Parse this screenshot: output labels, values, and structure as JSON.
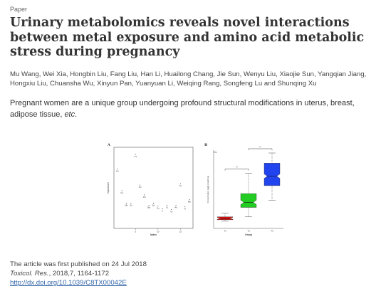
{
  "tag": "Paper",
  "title": "Urinary metabolomics reveals novel interactions between metal exposure and amino acid metabolic stress during pregnancy",
  "authors": "Mu Wang, Wei Xia, Hongbin Liu, Fang Liu, Han Li, Huailong Chang, Jie Sun, Wenyu Liu, Xiaojie Sun, Yangqian Jiang, Hongxiu Liu, Chuansha Wu, Xinyun Pan, Yuanyuan Li, Weiqing Rang, Songfeng Lu and Shunqing Xu",
  "abstract": {
    "text": "Pregnant women are a unique group undergoing profound structural modifications in uterus, breast, adipose tissue, ",
    "etc": "etc",
    "end": "."
  },
  "figure": {
    "panel_a": {
      "label": "A",
      "xlabel": "Index",
      "ylabel": "Importance",
      "xticks": [
        "5",
        "10",
        "15"
      ],
      "points": [
        {
          "label": "Fe",
          "x": 1,
          "y": 0.79
        },
        {
          "label": "Cu",
          "x": 2,
          "y": 0.48
        },
        {
          "label": "Mn",
          "x": 3,
          "y": 0.3
        },
        {
          "label": "Zn",
          "x": 4,
          "y": 0.3
        },
        {
          "label": "Cs",
          "x": 5,
          "y": 1.0
        },
        {
          "label": "Sn",
          "x": 6,
          "y": 0.56
        },
        {
          "label": "Pb",
          "x": 7,
          "y": 0.42
        },
        {
          "label": "Ba",
          "x": 8,
          "y": 0.27
        },
        {
          "label": "Se",
          "x": 9,
          "y": 0.3
        },
        {
          "label": "Co",
          "x": 10,
          "y": 0.26
        },
        {
          "label": "V",
          "x": 11,
          "y": 0.22
        },
        {
          "label": "Cr",
          "x": 12,
          "y": 0.27
        },
        {
          "label": "Ni",
          "x": 13,
          "y": 0.21
        },
        {
          "label": "As",
          "x": 14,
          "y": 0.27
        },
        {
          "label": "Sr",
          "x": 15,
          "y": 0.58
        },
        {
          "label": "Tl",
          "x": 16,
          "y": 0.25
        },
        {
          "label": "Mo",
          "x": 17,
          "y": 0.35
        }
      ]
    },
    "panel_b": {
      "label": "B",
      "element": "Cs",
      "ylabel": "Concentration (ug/g creatinine)",
      "xlabel": "Group",
      "groups": [
        {
          "name": "T1",
          "color": "#dd1111",
          "min": 0.06,
          "q1": 0.08,
          "median": 0.1,
          "q3": 0.12,
          "max": 0.17
        },
        {
          "name": "T2",
          "color": "#22cc22",
          "min": 0.12,
          "q1": 0.25,
          "median": 0.32,
          "q3": 0.44,
          "max": 0.72
        },
        {
          "name": "T3",
          "color": "#2244ee",
          "min": 0.35,
          "q1": 0.55,
          "median": 0.68,
          "q3": 0.86,
          "max": 1.0
        }
      ],
      "significance": [
        {
          "from": 0,
          "to": 1,
          "text": "**"
        },
        {
          "from": 1,
          "to": 2,
          "text": "**"
        }
      ]
    }
  },
  "meta": {
    "published": "The article was first published on 24 Jul 2018",
    "journal": "Toxicol. Res.",
    "citation": ", 2018,7, 1164-1172",
    "doi": "http://dx.doi.org/10.1039/C8TX00042E"
  }
}
